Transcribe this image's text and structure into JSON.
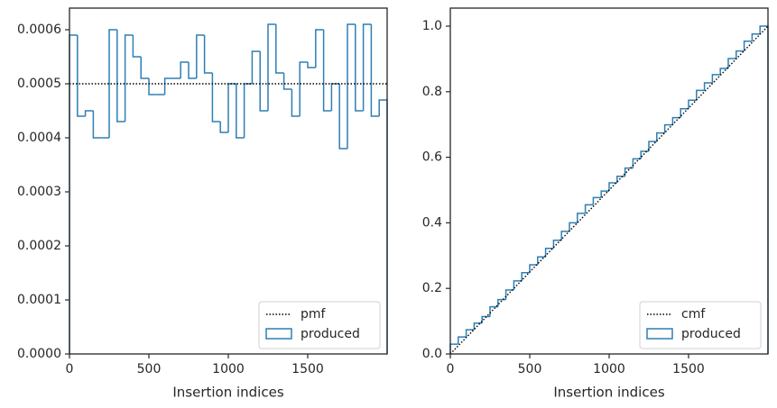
{
  "chart_data": [
    {
      "type": "histogram",
      "xlabel": "Insertion indices",
      "bins": [
        0,
        50,
        100,
        150,
        200,
        250,
        300,
        350,
        400,
        450,
        500,
        550,
        600,
        650,
        700,
        750,
        800,
        850,
        900,
        950,
        1000,
        1050,
        1100,
        1150,
        1200,
        1250,
        1300,
        1350,
        1400,
        1450,
        1500,
        1550,
        1600,
        1650,
        1700,
        1750,
        1800,
        1850,
        1900,
        1950,
        2000
      ],
      "series": [
        {
          "name": "produced",
          "color": "#2f7fb4",
          "values": [
            0.00059,
            0.00044,
            0.00045,
            0.0004,
            0.0004,
            0.0006,
            0.00043,
            0.00059,
            0.00055,
            0.00051,
            0.00048,
            0.00048,
            0.00051,
            0.00051,
            0.00054,
            0.00051,
            0.00059,
            0.00052,
            0.00043,
            0.00041,
            0.0005,
            0.0004,
            0.0005,
            0.00056,
            0.00045,
            0.00061,
            0.00052,
            0.00049,
            0.00044,
            0.00054,
            0.00053,
            0.0006,
            0.00045,
            0.0005,
            0.00038,
            0.00061,
            0.00045,
            0.00061,
            0.00044,
            0.00047
          ]
        }
      ],
      "reference": {
        "name": "pmf",
        "color": "#000000",
        "x": [
          0,
          2000
        ],
        "values": [
          0.0005,
          0.0005
        ]
      },
      "xlim": [
        0,
        2000
      ],
      "xticks": [
        0,
        500,
        1000,
        1500
      ],
      "ylim": [
        0,
        0.00064
      ],
      "yticks": [
        {
          "value": 0,
          "label": "0.0000"
        },
        {
          "value": 0.0001,
          "label": "0.0001"
        },
        {
          "value": 0.0002,
          "label": "0.0002"
        },
        {
          "value": 0.0003,
          "label": "0.0003"
        },
        {
          "value": 0.0004,
          "label": "0.0004"
        },
        {
          "value": 0.0005,
          "label": "0.0005"
        },
        {
          "value": 0.0006,
          "label": "0.0006"
        }
      ],
      "legend": "lower right"
    },
    {
      "type": "histogram",
      "xlabel": "Insertion indices",
      "bins": [
        0,
        50,
        100,
        150,
        200,
        250,
        300,
        350,
        400,
        450,
        500,
        550,
        600,
        650,
        700,
        750,
        800,
        850,
        900,
        950,
        1000,
        1050,
        1100,
        1150,
        1200,
        1250,
        1300,
        1350,
        1400,
        1450,
        1500,
        1550,
        1600,
        1650,
        1700,
        1750,
        1800,
        1850,
        1900,
        1950,
        2000
      ],
      "series": [
        {
          "name": "produced",
          "color": "#2f7fb4",
          "values": [
            0.03,
            0.052,
            0.074,
            0.094,
            0.114,
            0.144,
            0.166,
            0.195,
            0.223,
            0.248,
            0.272,
            0.296,
            0.322,
            0.347,
            0.374,
            0.4,
            0.429,
            0.455,
            0.477,
            0.497,
            0.522,
            0.542,
            0.567,
            0.595,
            0.618,
            0.648,
            0.674,
            0.699,
            0.721,
            0.748,
            0.774,
            0.804,
            0.827,
            0.852,
            0.871,
            0.901,
            0.924,
            0.954,
            0.976,
            1.0
          ]
        }
      ],
      "reference": {
        "name": "cmf",
        "color": "#000000",
        "x": [
          0,
          2000
        ],
        "values": [
          0,
          1
        ]
      },
      "xlim": [
        0,
        2000
      ],
      "xticks": [
        0,
        500,
        1000,
        1500
      ],
      "ylim": [
        0,
        1.055
      ],
      "yticks": [
        {
          "value": 0,
          "label": "0.0"
        },
        {
          "value": 0.2,
          "label": "0.2"
        },
        {
          "value": 0.4,
          "label": "0.4"
        },
        {
          "value": 0.6,
          "label": "0.6"
        },
        {
          "value": 0.8,
          "label": "0.8"
        },
        {
          "value": 1,
          "label": "1.0"
        }
      ],
      "legend": "lower right"
    }
  ]
}
